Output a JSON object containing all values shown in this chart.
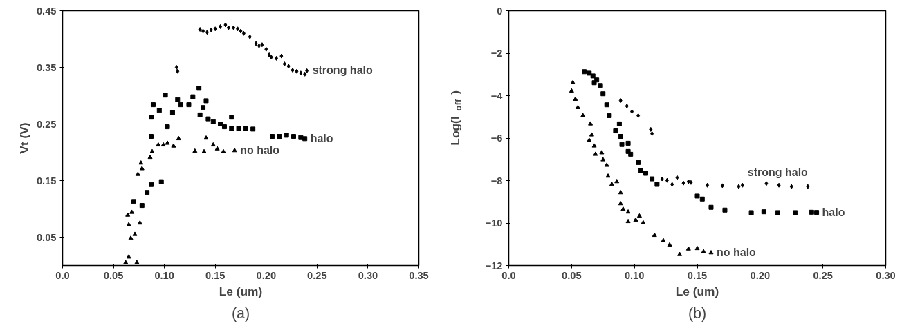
{
  "chart_data": [
    {
      "type": "scatter",
      "xlabel": "Le (um)",
      "ylabel": "Vt (V)",
      "xlim": [
        0,
        0.35
      ],
      "ylim": [
        0,
        0.45
      ],
      "xticks": [
        {
          "value": 0,
          "label": "0.0"
        },
        0.05,
        {
          "value": 0.1,
          "label": "0.10"
        },
        0.15,
        {
          "value": 0.2,
          "label": "0.20"
        },
        0.25,
        {
          "value": 0.3,
          "label": "0.30"
        },
        0.35
      ],
      "yticks": [
        0.05,
        0.15,
        0.25,
        0.35,
        0.45
      ],
      "grid": false,
      "legend": false,
      "annotations": [
        "(a)"
      ],
      "series": [
        {
          "name": "strong halo",
          "color": "#000000",
          "marker": "diamond",
          "x": [
            0.112,
            0.113,
            0.135,
            0.138,
            0.142,
            0.146,
            0.15,
            0.155,
            0.16,
            0.163,
            0.168,
            0.172,
            0.175,
            0.178,
            0.184,
            0.19,
            0.193,
            0.196,
            0.2,
            0.203,
            0.205,
            0.21,
            0.215,
            0.218,
            0.222,
            0.226,
            0.23,
            0.234,
            0.238,
            0.24
          ],
          "values": [
            0.35,
            0.343,
            0.417,
            0.414,
            0.412,
            0.416,
            0.418,
            0.422,
            0.425,
            0.42,
            0.42,
            0.418,
            0.414,
            0.41,
            0.404,
            0.392,
            0.388,
            0.39,
            0.382,
            0.372,
            0.368,
            0.366,
            0.37,
            0.356,
            0.352,
            0.345,
            0.343,
            0.34,
            0.338,
            0.344
          ]
        },
        {
          "name": "halo",
          "color": "#000000",
          "marker": "square",
          "x": [
            0.07,
            0.078,
            0.083,
            0.087,
            0.097,
            0.087,
            0.087,
            0.089,
            0.095,
            0.101,
            0.103,
            0.108,
            0.113,
            0.116,
            0.124,
            0.128,
            0.134,
            0.135,
            0.138,
            0.141,
            0.143,
            0.148,
            0.155,
            0.159,
            0.166,
            0.166,
            0.173,
            0.18,
            0.187,
            0.206,
            0.213,
            0.22,
            0.227,
            0.234,
            0.238
          ],
          "values": [
            0.113,
            0.106,
            0.129,
            0.143,
            0.148,
            0.228,
            0.262,
            0.284,
            0.274,
            0.301,
            0.245,
            0.27,
            0.293,
            0.284,
            0.284,
            0.298,
            0.313,
            0.266,
            0.279,
            0.291,
            0.259,
            0.254,
            0.25,
            0.245,
            0.262,
            0.242,
            0.242,
            0.242,
            0.241,
            0.228,
            0.228,
            0.23,
            0.228,
            0.226,
            0.224
          ]
        },
        {
          "name": "no halo",
          "color": "#000000",
          "marker": "triangle",
          "x": [
            0.062,
            0.065,
            0.073,
            0.064,
            0.068,
            0.065,
            0.067,
            0.071,
            0.076,
            0.074,
            0.077,
            0.078,
            0.086,
            0.088,
            0.094,
            0.099,
            0.103,
            0.109,
            0.114,
            0.13,
            0.139,
            0.141,
            0.148,
            0.152,
            0.158,
            0.169
          ],
          "values": [
            0.005,
            0.015,
            0.005,
            0.089,
            0.094,
            0.072,
            0.048,
            0.055,
            0.075,
            0.161,
            0.181,
            0.171,
            0.191,
            0.201,
            0.213,
            0.213,
            0.216,
            0.211,
            0.224,
            0.202,
            0.201,
            0.225,
            0.213,
            0.206,
            0.201,
            0.203
          ]
        }
      ]
    },
    {
      "type": "scatter",
      "xlabel": "Le (um)",
      "ylabel": "Log(I$_{off}$)",
      "xlim": [
        0,
        0.3
      ],
      "ylim": [
        -12,
        0
      ],
      "xticks": [
        {
          "value": 0,
          "label": "0.0"
        },
        0.05,
        {
          "value": 0.1,
          "label": "0.10"
        },
        0.15,
        {
          "value": 0.2,
          "label": "0.20"
        },
        0.25,
        {
          "value": 0.3,
          "label": "0.30"
        }
      ],
      "yticks": [
        -12,
        -10,
        -8,
        -6,
        -4,
        -2,
        0
      ],
      "grid": false,
      "legend": false,
      "annotations": [
        "(b)"
      ],
      "series": [
        {
          "name": "strong halo",
          "color": "#000000",
          "marker": "diamond",
          "x": [
            0.089,
            0.094,
            0.098,
            0.103,
            0.113,
            0.114,
            0.122,
            0.126,
            0.13,
            0.134,
            0.139,
            0.143,
            0.145,
            0.158,
            0.17,
            0.183,
            0.186,
            0.205,
            0.215,
            0.225,
            0.238
          ],
          "values": [
            -4.23,
            -4.49,
            -4.75,
            -4.94,
            -5.59,
            -5.79,
            -7.92,
            -7.99,
            -8.18,
            -7.86,
            -8.12,
            -8.05,
            -8.09,
            -8.22,
            -8.24,
            -8.28,
            -8.22,
            -8.14,
            -8.22,
            -8.28,
            -8.28
          ]
        },
        {
          "name": "halo",
          "color": "#000000",
          "marker": "square",
          "x": [
            0.06,
            0.064,
            0.067,
            0.068,
            0.07,
            0.073,
            0.075,
            0.078,
            0.08,
            0.088,
            0.085,
            0.089,
            0.09,
            0.095,
            0.095,
            0.097,
            0.103,
            0.105,
            0.109,
            0.114,
            0.118,
            0.15,
            0.154,
            0.161,
            0.172,
            0.193,
            0.203,
            0.214,
            0.228,
            0.241,
            0.245
          ],
          "values": [
            -2.87,
            -2.94,
            -3.07,
            -3.39,
            -3.26,
            -3.52,
            -3.91,
            -4.43,
            -4.94,
            -5.33,
            -5.66,
            -5.92,
            -6.3,
            -6.24,
            -6.63,
            -6.76,
            -7.15,
            -7.53,
            -7.66,
            -7.92,
            -8.18,
            -8.73,
            -8.87,
            -9.26,
            -9.39,
            -9.51,
            -9.47,
            -9.51,
            -9.51,
            -9.49,
            -9.5
          ]
        },
        {
          "name": "no halo",
          "color": "#000000",
          "marker": "triangle",
          "x": [
            0.051,
            0.05,
            0.053,
            0.055,
            0.059,
            0.065,
            0.066,
            0.064,
            0.068,
            0.069,
            0.074,
            0.075,
            0.078,
            0.079,
            0.082,
            0.086,
            0.089,
            0.089,
            0.091,
            0.095,
            0.095,
            0.101,
            0.104,
            0.107,
            0.116,
            0.123,
            0.128,
            0.136,
            0.143,
            0.15,
            0.155,
            0.161
          ],
          "values": [
            -3.39,
            -3.78,
            -4.17,
            -4.56,
            -4.94,
            -5.33,
            -5.85,
            -6.11,
            -6.37,
            -6.76,
            -6.69,
            -7.02,
            -7.28,
            -7.79,
            -8.18,
            -8.05,
            -8.57,
            -9.09,
            -9.35,
            -9.48,
            -9.93,
            -9.86,
            -9.67,
            -9.99,
            -10.58,
            -10.83,
            -11.03,
            -11.48,
            -11.22,
            -11.2,
            -11.35,
            -11.4
          ]
        }
      ]
    }
  ]
}
